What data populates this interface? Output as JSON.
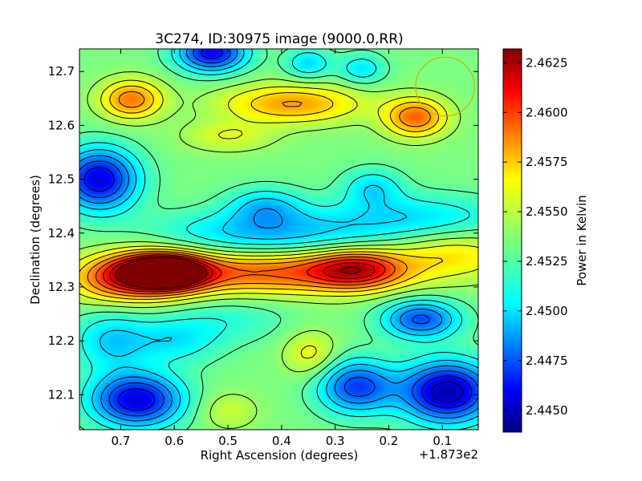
{
  "chart_data": {
    "type": "heatmap",
    "title": "3C274, ID:30975 image (9000.0,RR)",
    "xlabel": "Right Ascension (degrees)",
    "ylabel": "Declination (degrees)",
    "x_offset_label": "+1.873e2",
    "xlim": [
      0.777,
      0.033
    ],
    "ylim": [
      12.035,
      12.742
    ],
    "x_ticks": [
      0.7,
      0.6,
      0.5,
      0.4,
      0.3,
      0.2,
      0.1
    ],
    "x_tick_labels": [
      "0.7",
      "0.6",
      "0.5",
      "0.4",
      "0.3",
      "0.2",
      "0.1"
    ],
    "y_ticks": [
      12.1,
      12.2,
      12.3,
      12.4,
      12.5,
      12.6,
      12.7
    ],
    "y_tick_labels": [
      "12.1",
      "12.2",
      "12.3",
      "12.4",
      "12.5",
      "12.6",
      "12.7"
    ],
    "colorbar": {
      "label": "Power in Kelvin",
      "colormap": "jet",
      "range": [
        2.4439,
        2.4632
      ],
      "ticks": [
        2.445,
        2.4475,
        2.45,
        2.4525,
        2.455,
        2.4575,
        2.46,
        2.4625
      ],
      "tick_labels": [
        "2.4450",
        "2.4475",
        "2.4500",
        "2.4525",
        "2.4550",
        "2.4575",
        "2.4600",
        "2.4625"
      ]
    },
    "contours": true,
    "base_level": 2.4535,
    "features": [
      {
        "ra": 0.615,
        "dec": 12.328,
        "value": 2.4632,
        "sx": 0.045,
        "sy": 0.018
      },
      {
        "ra": 0.64,
        "dec": 12.325,
        "value": 2.461,
        "sx": 0.07,
        "sy": 0.03
      },
      {
        "ra": 0.42,
        "dec": 12.327,
        "value": 2.459,
        "sx": 0.16,
        "sy": 0.028
      },
      {
        "ra": 0.26,
        "dec": 12.333,
        "value": 2.4594,
        "sx": 0.06,
        "sy": 0.025
      },
      {
        "ra": 0.08,
        "dec": 12.36,
        "value": 2.4562,
        "sx": 0.08,
        "sy": 0.03
      },
      {
        "ra": 0.72,
        "dec": 12.31,
        "value": 2.4562,
        "sx": 0.06,
        "sy": 0.03
      },
      {
        "ra": 0.43,
        "dec": 12.4,
        "value": 2.45,
        "sx": 0.14,
        "sy": 0.03
      },
      {
        "ra": 0.15,
        "dec": 12.43,
        "value": 2.4508,
        "sx": 0.12,
        "sy": 0.03
      },
      {
        "ra": 0.74,
        "dec": 12.5,
        "value": 2.4458,
        "sx": 0.05,
        "sy": 0.04
      },
      {
        "ra": 0.43,
        "dec": 12.45,
        "value": 2.4505,
        "sx": 0.05,
        "sy": 0.025
      },
      {
        "ra": 0.23,
        "dec": 12.485,
        "value": 2.4508,
        "sx": 0.04,
        "sy": 0.025
      },
      {
        "ra": 0.68,
        "dec": 12.648,
        "value": 2.4585,
        "sx": 0.04,
        "sy": 0.025
      },
      {
        "ra": 0.38,
        "dec": 12.64,
        "value": 2.4578,
        "sx": 0.09,
        "sy": 0.025
      },
      {
        "ra": 0.15,
        "dec": 12.615,
        "value": 2.4588,
        "sx": 0.04,
        "sy": 0.025
      },
      {
        "ra": 0.53,
        "dec": 12.735,
        "value": 2.4462,
        "sx": 0.045,
        "sy": 0.025
      },
      {
        "ra": 0.35,
        "dec": 12.715,
        "value": 2.4505,
        "sx": 0.03,
        "sy": 0.02
      },
      {
        "ra": 0.25,
        "dec": 12.705,
        "value": 2.4508,
        "sx": 0.03,
        "sy": 0.02
      },
      {
        "ra": 0.5,
        "dec": 12.58,
        "value": 2.4553,
        "sx": 0.06,
        "sy": 0.02
      },
      {
        "ra": 0.67,
        "dec": 12.09,
        "value": 2.4458,
        "sx": 0.06,
        "sy": 0.035
      },
      {
        "ra": 0.09,
        "dec": 12.105,
        "value": 2.4448,
        "sx": 0.06,
        "sy": 0.04
      },
      {
        "ra": 0.26,
        "dec": 12.115,
        "value": 2.4475,
        "sx": 0.05,
        "sy": 0.035
      },
      {
        "ra": 0.14,
        "dec": 12.24,
        "value": 2.4478,
        "sx": 0.05,
        "sy": 0.025
      },
      {
        "ra": 0.345,
        "dec": 12.175,
        "value": 2.4558,
        "sx": 0.035,
        "sy": 0.03
      },
      {
        "ra": 0.5,
        "dec": 12.07,
        "value": 2.455,
        "sx": 0.04,
        "sy": 0.025
      },
      {
        "ra": 0.6,
        "dec": 12.2,
        "value": 2.451,
        "sx": 0.06,
        "sy": 0.03
      },
      {
        "ra": 0.5,
        "dec": 12.24,
        "value": 2.452,
        "sx": 0.08,
        "sy": 0.03
      },
      {
        "ra": 0.72,
        "dec": 12.2,
        "value": 2.4505,
        "sx": 0.05,
        "sy": 0.04
      }
    ],
    "beam_circle": {
      "ra": 0.095,
      "dec": 12.672,
      "radius_deg": 0.055,
      "color": "#c8b400"
    }
  }
}
